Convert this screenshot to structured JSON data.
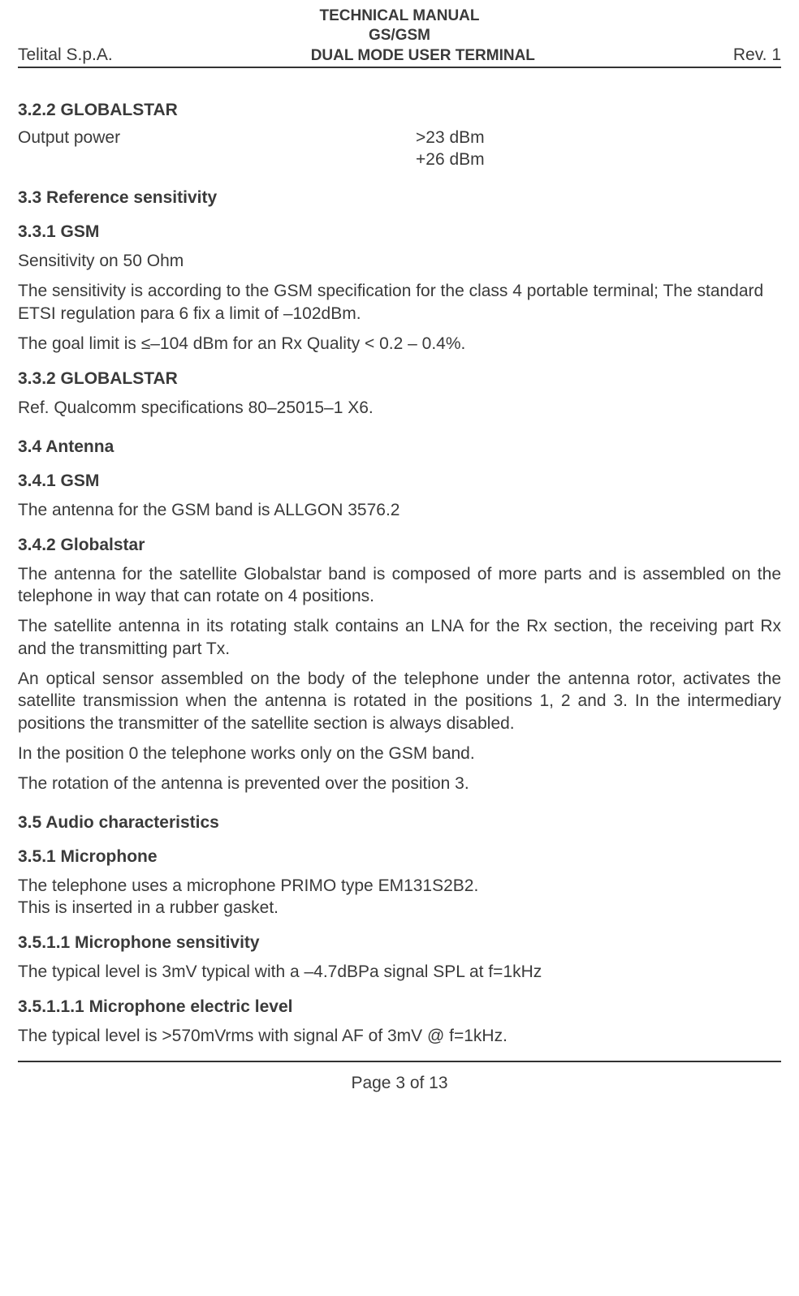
{
  "header": {
    "title_line1": "TECHNICAL MANUAL",
    "title_line2": "GS/GSM",
    "title_line3": "DUAL MODE USER TERMINAL",
    "left": "Telital S.p.A.",
    "right": "Rev. 1"
  },
  "sections": {
    "s322": {
      "num": "3.2.2 GLOBALSTAR",
      "row_label": "Output power",
      "row_val1": ">23 dBm",
      "row_val2": "+26 dBm"
    },
    "s33": {
      "num": "3.3    Reference sensitivity"
    },
    "s331": {
      "num": "3.3.1 GSM",
      "p1": "Sensitivity on 50 Ohm",
      "p2": "The sensitivity is according to the GSM specification for the class 4 portable terminal; The standard ETSI regulation para 6 fix a limit of –102dBm.",
      "p3": "The goal limit is  ≤–104 dBm for an Rx Quality  < 0.2 – 0.4%."
    },
    "s332": {
      "num": "3.3.2 GLOBALSTAR",
      "p1": "Ref. Qualcomm specifications 80–25015–1 X6."
    },
    "s34": {
      "num": "3.4    Antenna"
    },
    "s341": {
      "num": "3.4.1 GSM",
      "p1": "The antenna for the GSM band is ALLGON 3576.2"
    },
    "s342": {
      "num": "3.4.2 Globalstar",
      "p1": "The antenna for the satellite Globalstar band is composed of more parts and is assembled on the telephone in way that can rotate on 4 positions.",
      "p2": "The satellite antenna in its rotating stalk contains an LNA  for the Rx  section, the receiving part Rx and the transmitting part Tx.",
      "p3": "An optical sensor assembled on the body of the telephone under the antenna rotor, activates the satellite transmission when the antenna is rotated in the positions 1, 2 and 3. In the intermediary positions the transmitter of the satellite section is always disabled.",
      "p4": "In the position 0 the telephone works only on the GSM band.",
      "p5": "The rotation of the antenna is prevented over the position 3."
    },
    "s35": {
      "num": "3.5     Audio characteristics"
    },
    "s351": {
      "num": "3.5.1 Microphone",
      "p1": "The telephone uses a microphone PRIMO type EM131S2B2.",
      "p2": " This is inserted in a rubber gasket."
    },
    "s3511": {
      "num": "3.5.1.1 Microphone sensitivity",
      "p1": "The typical level is 3mV typical with a –4.7dBPa signal SPL at f=1kHz"
    },
    "s35111": {
      "num": "3.5.1.1.1 Microphone electric level",
      "p1": "The typical level is >570mVrms with signal AF of 3mV @ f=1kHz."
    }
  },
  "footer": "Page 3 of 13"
}
